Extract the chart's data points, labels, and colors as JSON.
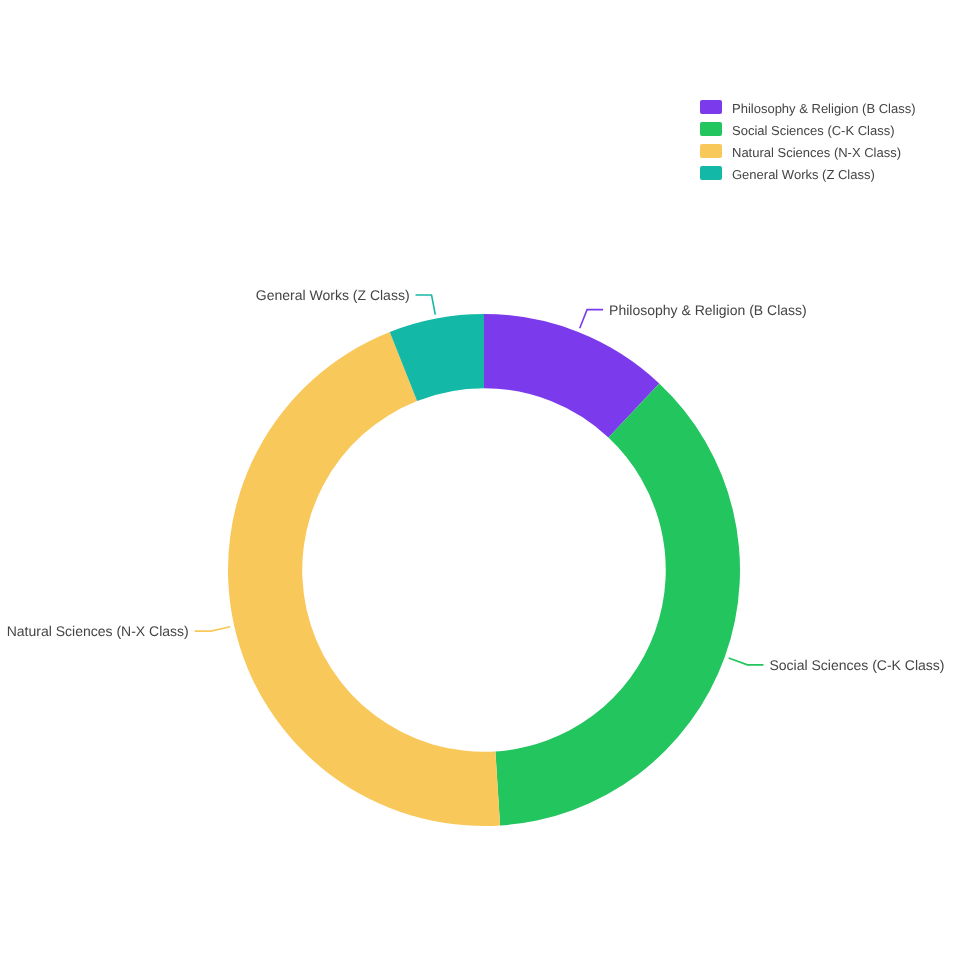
{
  "chart_data": {
    "type": "donut",
    "categories": [
      "Philosophy & Religion (B Class)",
      "Social Sciences (C-K Class)",
      "Natural Sciences (N-X Class)",
      "General Works (Z Class)"
    ],
    "values": [
      12,
      37,
      45,
      6
    ],
    "colors": [
      "#7c3aed",
      "#22c55e",
      "#f9c85a",
      "#14b8a6"
    ],
    "legend": "top right"
  }
}
